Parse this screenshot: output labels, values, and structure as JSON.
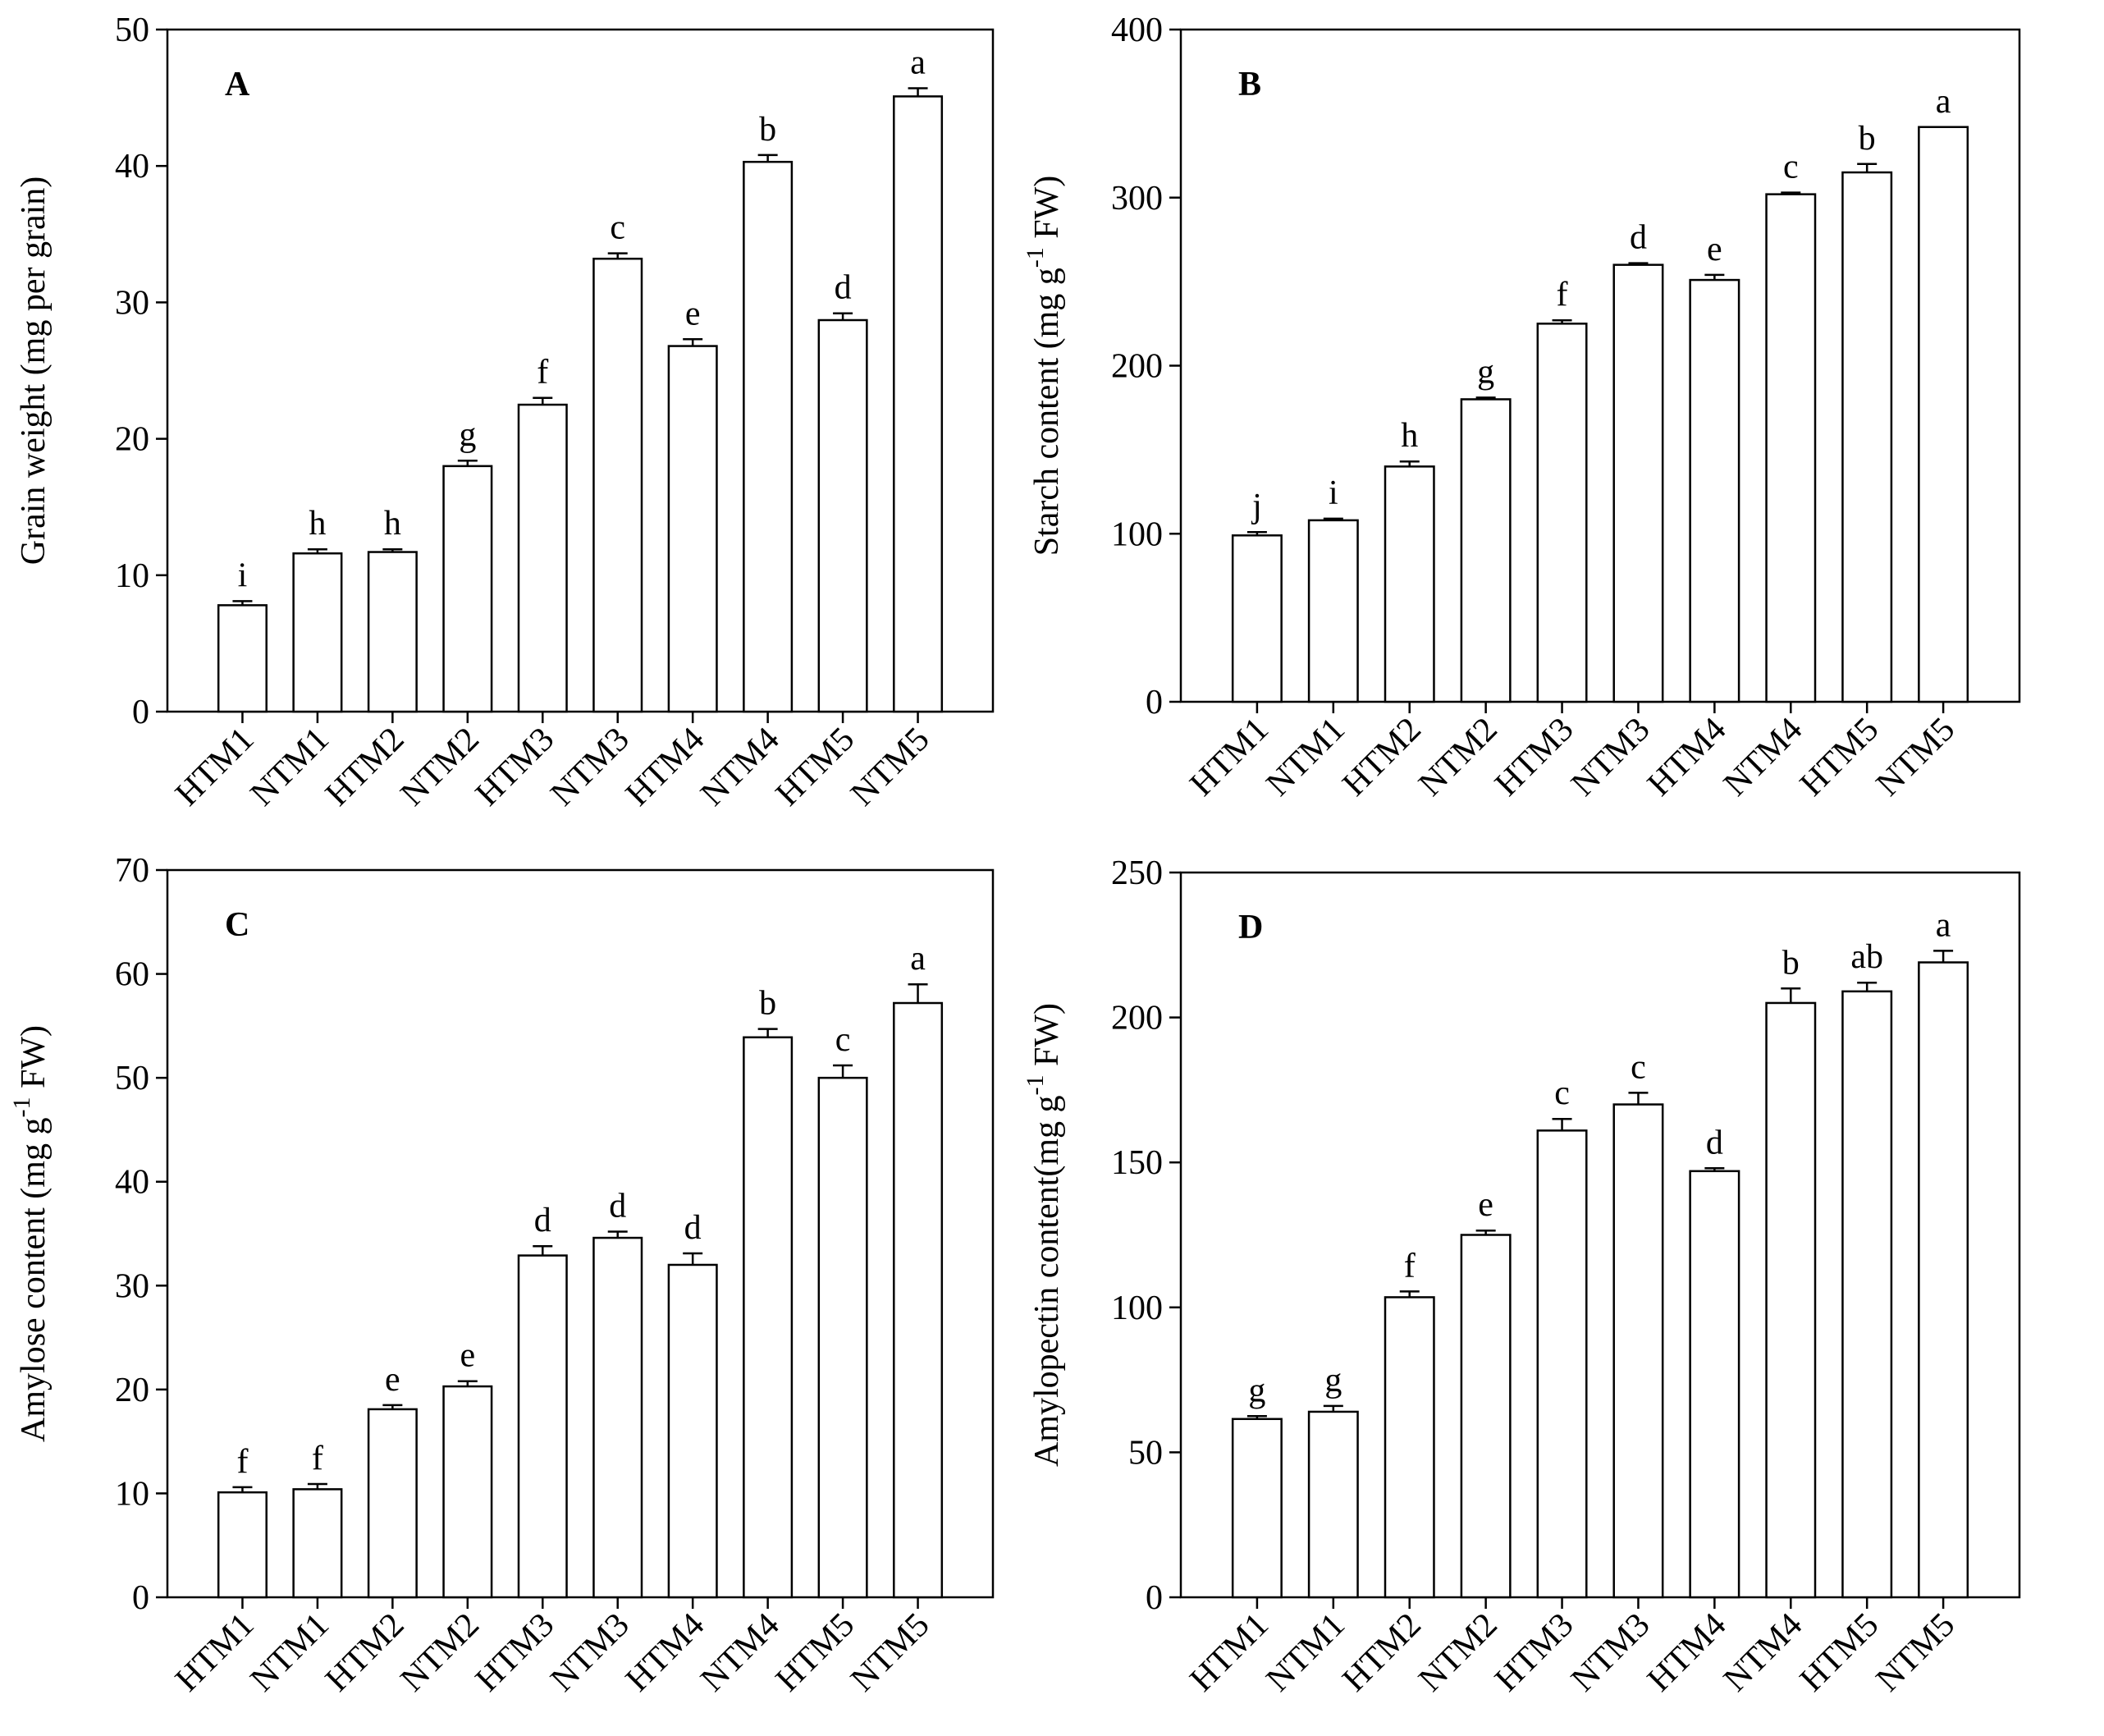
{
  "chart_data": [
    {
      "type": "bar",
      "panel_label": "A",
      "ylabel": {
        "text": "Grain weight (mg per grain)"
      },
      "categories": [
        "HTM1",
        "NTM1",
        "HTM2",
        "NTM2",
        "HTM3",
        "NTM3",
        "HTM4",
        "NTM4",
        "HTM5",
        "NTM5"
      ],
      "values": [
        7.8,
        11.6,
        11.7,
        18.0,
        22.5,
        33.2,
        26.8,
        40.3,
        28.7,
        45.1
      ],
      "errors": [
        0.3,
        0.3,
        0.2,
        0.4,
        0.5,
        0.4,
        0.5,
        0.5,
        0.5,
        0.6
      ],
      "annotations": [
        "i",
        "h",
        "h",
        "g",
        "f",
        "c",
        "e",
        "b",
        "d",
        "a"
      ],
      "ylim": [
        0,
        50
      ],
      "yticks": [
        0,
        10,
        20,
        30,
        40,
        50
      ],
      "color": "#ffffff"
    },
    {
      "type": "bar",
      "panel_label": "B",
      "ylabel": {
        "text": "Starch content (mg g",
        "superscript": "-1",
        "after": " FW)"
      },
      "categories": [
        "HTM1",
        "NTM1",
        "HTM2",
        "NTM2",
        "HTM3",
        "NTM3",
        "HTM4",
        "NTM4",
        "HTM5",
        "NTM5"
      ],
      "values": [
        99,
        108,
        140,
        180,
        225,
        260,
        251,
        302,
        315,
        342
      ],
      "errors": [
        2,
        1,
        3,
        1,
        2,
        1,
        3,
        1,
        5,
        0
      ],
      "annotations": [
        "j",
        "i",
        "h",
        "g",
        "f",
        "d",
        "e",
        "c",
        "b",
        "a"
      ],
      "ylim": [
        0,
        400
      ],
      "yticks": [
        0,
        100,
        200,
        300,
        400
      ],
      "color": "#ffffff"
    },
    {
      "type": "bar",
      "panel_label": "C",
      "ylabel": {
        "text": "Amylose content (mg g",
        "superscript": "-1",
        "after": " FW)"
      },
      "categories": [
        "HTM1",
        "NTM1",
        "HTM2",
        "NTM2",
        "HTM3",
        "NTM3",
        "HTM4",
        "NTM4",
        "HTM5",
        "NTM5"
      ],
      "values": [
        10.1,
        10.4,
        18.1,
        20.3,
        32.9,
        34.6,
        32.0,
        53.9,
        50.0,
        57.2
      ],
      "errors": [
        0.5,
        0.5,
        0.4,
        0.5,
        0.9,
        0.6,
        1.1,
        0.8,
        1.2,
        1.8
      ],
      "annotations": [
        "f",
        "f",
        "e",
        "e",
        "d",
        "d",
        "d",
        "b",
        "c",
        "a"
      ],
      "ylim": [
        0,
        70
      ],
      "yticks": [
        0,
        10,
        20,
        30,
        40,
        50,
        60,
        70
      ],
      "color": "#ffffff"
    },
    {
      "type": "bar",
      "panel_label": "D",
      "ylabel": {
        "text": "Amylopectin content(mg g",
        "superscript": "-1",
        "after": " FW)"
      },
      "categories": [
        "HTM1",
        "NTM1",
        "HTM2",
        "NTM2",
        "HTM3",
        "NTM3",
        "HTM4",
        "NTM4",
        "HTM5",
        "NTM5"
      ],
      "values": [
        61.5,
        64,
        103.5,
        125,
        161,
        170,
        147,
        205,
        209,
        219
      ],
      "errors": [
        1,
        2,
        2,
        1.5,
        4,
        4,
        1,
        5,
        3,
        4
      ],
      "annotations": [
        "g",
        "g",
        "f",
        "e",
        "c",
        "c",
        "d",
        "b",
        "ab",
        "a"
      ],
      "ylim": [
        0,
        250
      ],
      "yticks": [
        0,
        50,
        100,
        150,
        200,
        250
      ],
      "color": "#ffffff"
    }
  ]
}
